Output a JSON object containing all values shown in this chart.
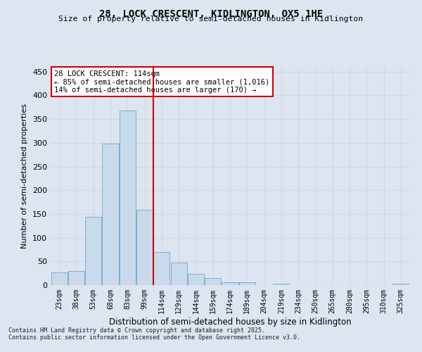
{
  "title1": "28, LOCK CRESCENT, KIDLINGTON, OX5 1HE",
  "title2": "Size of property relative to semi-detached houses in Kidlington",
  "xlabel": "Distribution of semi-detached houses by size in Kidlington",
  "ylabel": "Number of semi-detached properties",
  "categories": [
    "23sqm",
    "38sqm",
    "53sqm",
    "68sqm",
    "83sqm",
    "99sqm",
    "114sqm",
    "129sqm",
    "144sqm",
    "159sqm",
    "174sqm",
    "189sqm",
    "204sqm",
    "219sqm",
    "234sqm",
    "250sqm",
    "265sqm",
    "280sqm",
    "295sqm",
    "310sqm",
    "325sqm"
  ],
  "values": [
    27,
    30,
    144,
    298,
    368,
    159,
    70,
    48,
    24,
    15,
    6,
    6,
    0,
    3,
    0,
    0,
    0,
    0,
    0,
    0,
    3
  ],
  "bar_color": "#c9daea",
  "bar_edge_color": "#7bafd4",
  "vline_index": 6,
  "vline_color": "#cc0000",
  "annotation_title": "28 LOCK CRESCENT: 114sqm",
  "annotation_line1": "← 85% of semi-detached houses are smaller (1,016)",
  "annotation_line2": "14% of semi-detached houses are larger (170) →",
  "annotation_box_color": "#ffffff",
  "annotation_box_edge": "#cc0000",
  "grid_color": "#d0d8e8",
  "bg_color": "#dde5f0",
  "plot_bg_color": "#dde5f0",
  "ylim": [
    0,
    460
  ],
  "yticks": [
    0,
    50,
    100,
    150,
    200,
    250,
    300,
    350,
    400,
    450
  ],
  "footer1": "Contains HM Land Registry data © Crown copyright and database right 2025.",
  "footer2": "Contains public sector information licensed under the Open Government Licence v3.0."
}
